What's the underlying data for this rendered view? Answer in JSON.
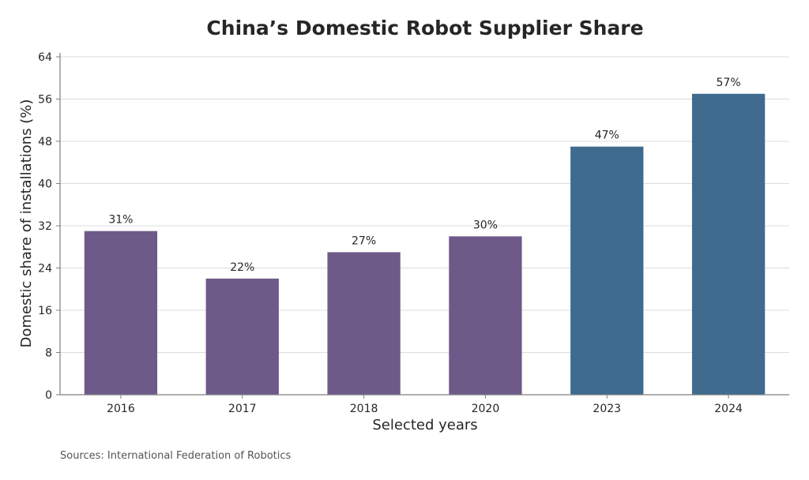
{
  "chart_data": {
    "type": "bar",
    "title": "China’s Domestic Robot Supplier Share",
    "xlabel": "Selected years",
    "ylabel": "Domestic share of installations (%)",
    "categories": [
      "2016",
      "2017",
      "2018",
      "2020",
      "2023",
      "2024"
    ],
    "values": [
      31,
      22,
      27,
      30,
      47,
      57
    ],
    "data_labels": [
      "31%",
      "22%",
      "27%",
      "30%",
      "47%",
      "57%"
    ],
    "bar_colors": [
      "#6e5a89",
      "#6e5a89",
      "#6e5a89",
      "#6e5a89",
      "#3f6b8e",
      "#3f6b8e"
    ],
    "ylim": [
      0,
      64
    ],
    "yticks": [
      0,
      8,
      16,
      24,
      32,
      40,
      48,
      56,
      64
    ],
    "grid": true,
    "legend": "none"
  },
  "footer": {
    "source": "Sources: International Federation of Robotics"
  }
}
